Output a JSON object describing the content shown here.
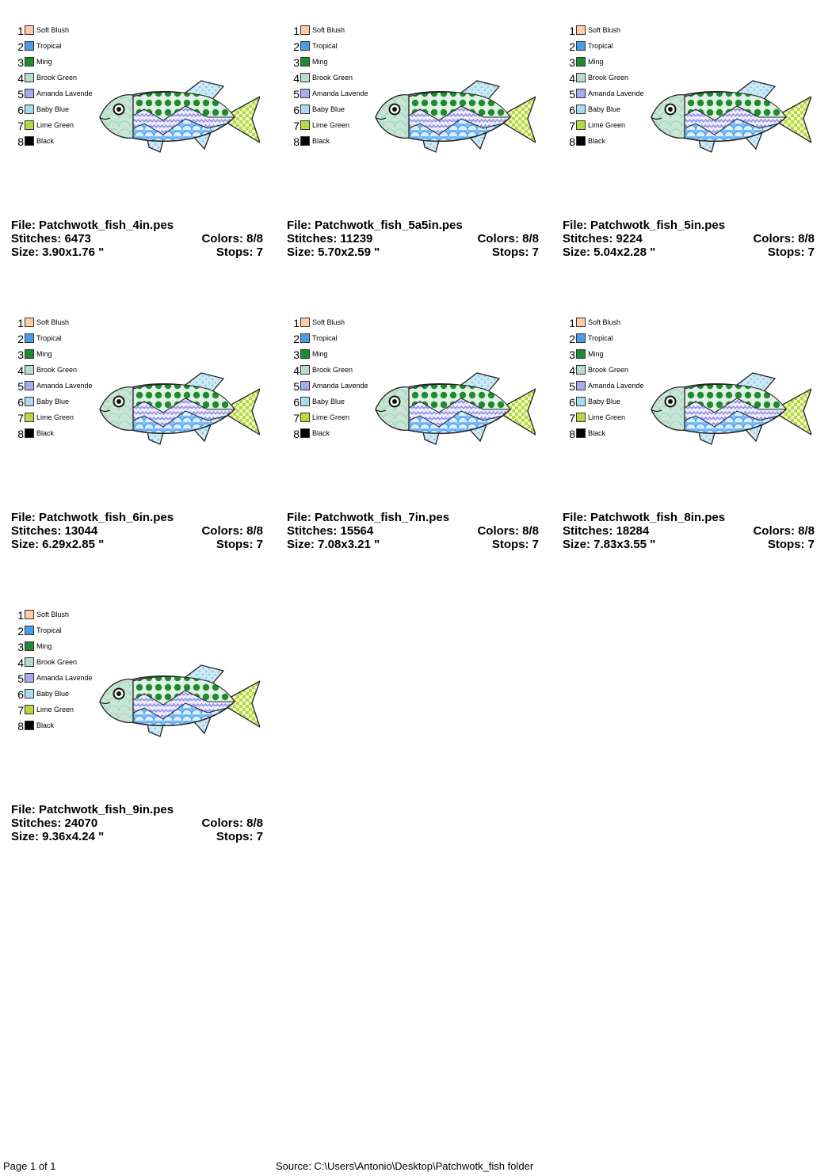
{
  "palette": [
    {
      "num": "1",
      "name": "Soft Blush",
      "color": "#FFCBA4"
    },
    {
      "num": "2",
      "name": "Tropical",
      "color": "#4A9BE8"
    },
    {
      "num": "3",
      "name": "Ming",
      "color": "#1F8A2E"
    },
    {
      "num": "4",
      "name": "Brook Green",
      "color": "#B8DCCB"
    },
    {
      "num": "5",
      "name": "Amanda Lavende",
      "color": "#A9A9F0"
    },
    {
      "num": "6",
      "name": "Baby Blue",
      "color": "#A8DCEF"
    },
    {
      "num": "7",
      "name": "Lime Green",
      "color": "#B9D93F"
    },
    {
      "num": "8",
      "name": "Black",
      "color": "#000000"
    }
  ],
  "designs": [
    {
      "file_label": "File: Patchwotk_fish_4in.pes",
      "stitches_label": "Stitches: 6473",
      "colors_label": "Colors: 8/8",
      "size_label": "Size: 3.90x1.76 \"",
      "stops_label": "Stops: 7"
    },
    {
      "file_label": "File: Patchwotk_fish_5a5in.pes",
      "stitches_label": "Stitches: 11239",
      "colors_label": "Colors: 8/8",
      "size_label": "Size: 5.70x2.59 \"",
      "stops_label": "Stops: 7"
    },
    {
      "file_label": "File: Patchwotk_fish_5in.pes",
      "stitches_label": "Stitches: 9224",
      "colors_label": "Colors: 8/8",
      "size_label": "Size: 5.04x2.28 \"",
      "stops_label": "Stops: 7"
    },
    {
      "file_label": "File: Patchwotk_fish_6in.pes",
      "stitches_label": "Stitches: 13044",
      "colors_label": "Colors: 8/8",
      "size_label": "Size: 6.29x2.85 \"",
      "stops_label": "Stops: 7"
    },
    {
      "file_label": "File: Patchwotk_fish_7in.pes",
      "stitches_label": "Stitches: 15564",
      "colors_label": "Colors: 8/8",
      "size_label": "Size: 7.08x3.21 \"",
      "stops_label": "Stops: 7"
    },
    {
      "file_label": "File: Patchwotk_fish_8in.pes",
      "stitches_label": "Stitches: 18284",
      "colors_label": "Colors: 8/8",
      "size_label": "Size: 7.83x3.55 \"",
      "stops_label": "Stops: 7"
    },
    {
      "file_label": "File: Patchwotk_fish_9in.pes",
      "stitches_label": "Stitches: 24070",
      "colors_label": "Colors: 8/8",
      "size_label": "Size: 9.36x4.24 \"",
      "stops_label": "Stops: 7"
    }
  ],
  "footer": {
    "page": "Page 1 of 1",
    "source": "Source: C:\\Users\\Antonio\\Desktop\\Patchwotk_fish folder"
  }
}
